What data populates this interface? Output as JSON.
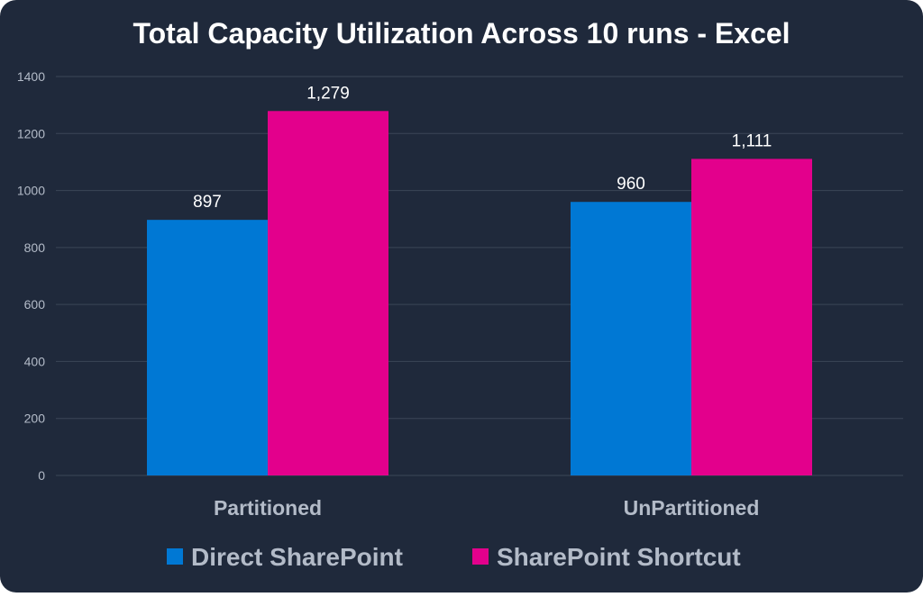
{
  "colors": {
    "background": "#1f293b",
    "grid": "#3b4657",
    "series_direct": "#0078d4",
    "series_shortcut": "#e3008c",
    "title_text": "#ffffff",
    "axis_text": "#b3bbc8",
    "category_text": "#b3bbc8",
    "data_label_text": "#ffffff"
  },
  "chart_data": {
    "type": "bar",
    "title": "Total Capacity Utilization Across 10 runs - Excel",
    "xlabel": "",
    "ylabel": "",
    "categories": [
      "Partitioned",
      "UnPartitioned"
    ],
    "series": [
      {
        "name": "Direct SharePoint",
        "values": [
          897,
          960
        ],
        "labels": [
          "897",
          "960"
        ]
      },
      {
        "name": "SharePoint Shortcut",
        "values": [
          1279,
          1111
        ],
        "labels": [
          "1,279",
          "1,111"
        ]
      }
    ],
    "ylim": [
      0,
      1400
    ],
    "yticks": [
      "0",
      "200",
      "400",
      "600",
      "800",
      "1000",
      "1200",
      "1400"
    ],
    "grid": true,
    "legend_position": "bottom"
  }
}
